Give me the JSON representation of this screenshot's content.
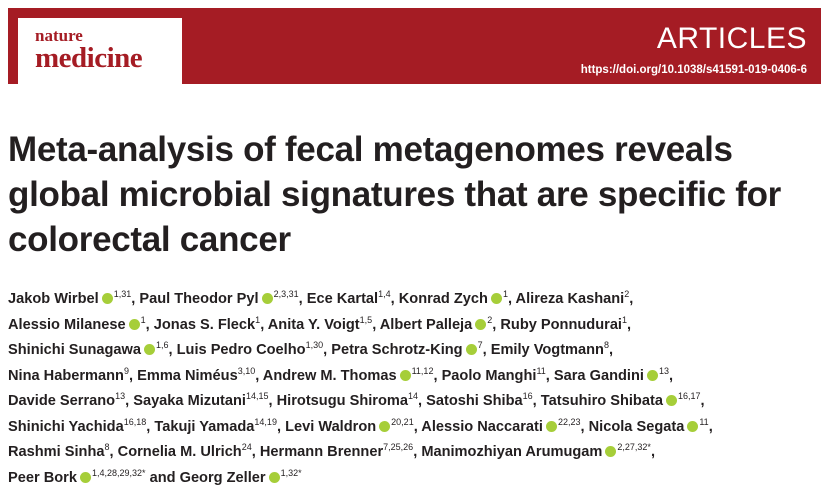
{
  "header": {
    "journal_small": "nature",
    "journal_large": "medicine",
    "section": "ARTICLES",
    "doi": "https://doi.org/10.1038/s41591-019-0406-6"
  },
  "title_lines": [
    "Meta-analysis of fecal metagenomes reveals",
    "global microbial signatures that are specific for",
    "colorectal cancer"
  ],
  "byline": {
    "separator": ",",
    "conjunction": "and",
    "lines": [
      [
        {
          "name": "Jakob Wirbel",
          "orcid": true,
          "sup": "1,31"
        },
        {
          "name": "Paul Theodor Pyl",
          "orcid": true,
          "sup": "2,3,31"
        },
        {
          "name": "Ece Kartal",
          "orcid": false,
          "sup": "1,4"
        },
        {
          "name": "Konrad Zych",
          "orcid": true,
          "sup": "1"
        },
        {
          "name": "Alireza Kashani",
          "orcid": false,
          "sup": "2"
        }
      ],
      [
        {
          "name": "Alessio Milanese",
          "orcid": true,
          "sup": "1"
        },
        {
          "name": "Jonas S. Fleck",
          "orcid": false,
          "sup": "1"
        },
        {
          "name": "Anita Y. Voigt",
          "orcid": false,
          "sup": "1,5"
        },
        {
          "name": "Albert Palleja",
          "orcid": true,
          "sup": "2"
        },
        {
          "name": "Ruby Ponnudurai",
          "orcid": false,
          "sup": "1"
        }
      ],
      [
        {
          "name": "Shinichi Sunagawa",
          "orcid": true,
          "sup": "1,6"
        },
        {
          "name": "Luis Pedro Coelho",
          "orcid": false,
          "sup": "1,30"
        },
        {
          "name": "Petra Schrotz-King",
          "orcid": true,
          "sup": "7"
        },
        {
          "name": "Emily Vogtmann",
          "orcid": false,
          "sup": "8"
        }
      ],
      [
        {
          "name": "Nina Habermann",
          "orcid": false,
          "sup": "9"
        },
        {
          "name": "Emma Niméus",
          "orcid": false,
          "sup": "3,10"
        },
        {
          "name": "Andrew M. Thomas",
          "orcid": true,
          "sup": "11,12"
        },
        {
          "name": "Paolo Manghi",
          "orcid": false,
          "sup": "11"
        },
        {
          "name": "Sara Gandini",
          "orcid": true,
          "sup": "13"
        }
      ],
      [
        {
          "name": "Davide Serrano",
          "orcid": false,
          "sup": "13"
        },
        {
          "name": "Sayaka Mizutani",
          "orcid": false,
          "sup": "14,15"
        },
        {
          "name": "Hirotsugu Shiroma",
          "orcid": false,
          "sup": "14"
        },
        {
          "name": "Satoshi Shiba",
          "orcid": false,
          "sup": "16"
        },
        {
          "name": "Tatsuhiro Shibata",
          "orcid": true,
          "sup": "16,17"
        }
      ],
      [
        {
          "name": "Shinichi Yachida",
          "orcid": false,
          "sup": "16,18"
        },
        {
          "name": "Takuji Yamada",
          "orcid": false,
          "sup": "14,19"
        },
        {
          "name": "Levi Waldron",
          "orcid": true,
          "sup": "20,21"
        },
        {
          "name": "Alessio Naccarati",
          "orcid": true,
          "sup": "22,23"
        },
        {
          "name": "Nicola Segata",
          "orcid": true,
          "sup": "11"
        }
      ],
      [
        {
          "name": "Rashmi Sinha",
          "orcid": false,
          "sup": "8"
        },
        {
          "name": "Cornelia M. Ulrich",
          "orcid": false,
          "sup": "24"
        },
        {
          "name": "Hermann Brenner",
          "orcid": false,
          "sup": "7,25,26"
        },
        {
          "name": "Manimozhiyan Arumugam",
          "orcid": true,
          "sup": "2,27,32*"
        }
      ],
      [
        {
          "name": "Peer Bork",
          "orcid": true,
          "sup": "1,4,28,29,32*"
        },
        {
          "name": "Georg Zeller",
          "orcid": true,
          "sup": "1,32*"
        }
      ]
    ]
  }
}
